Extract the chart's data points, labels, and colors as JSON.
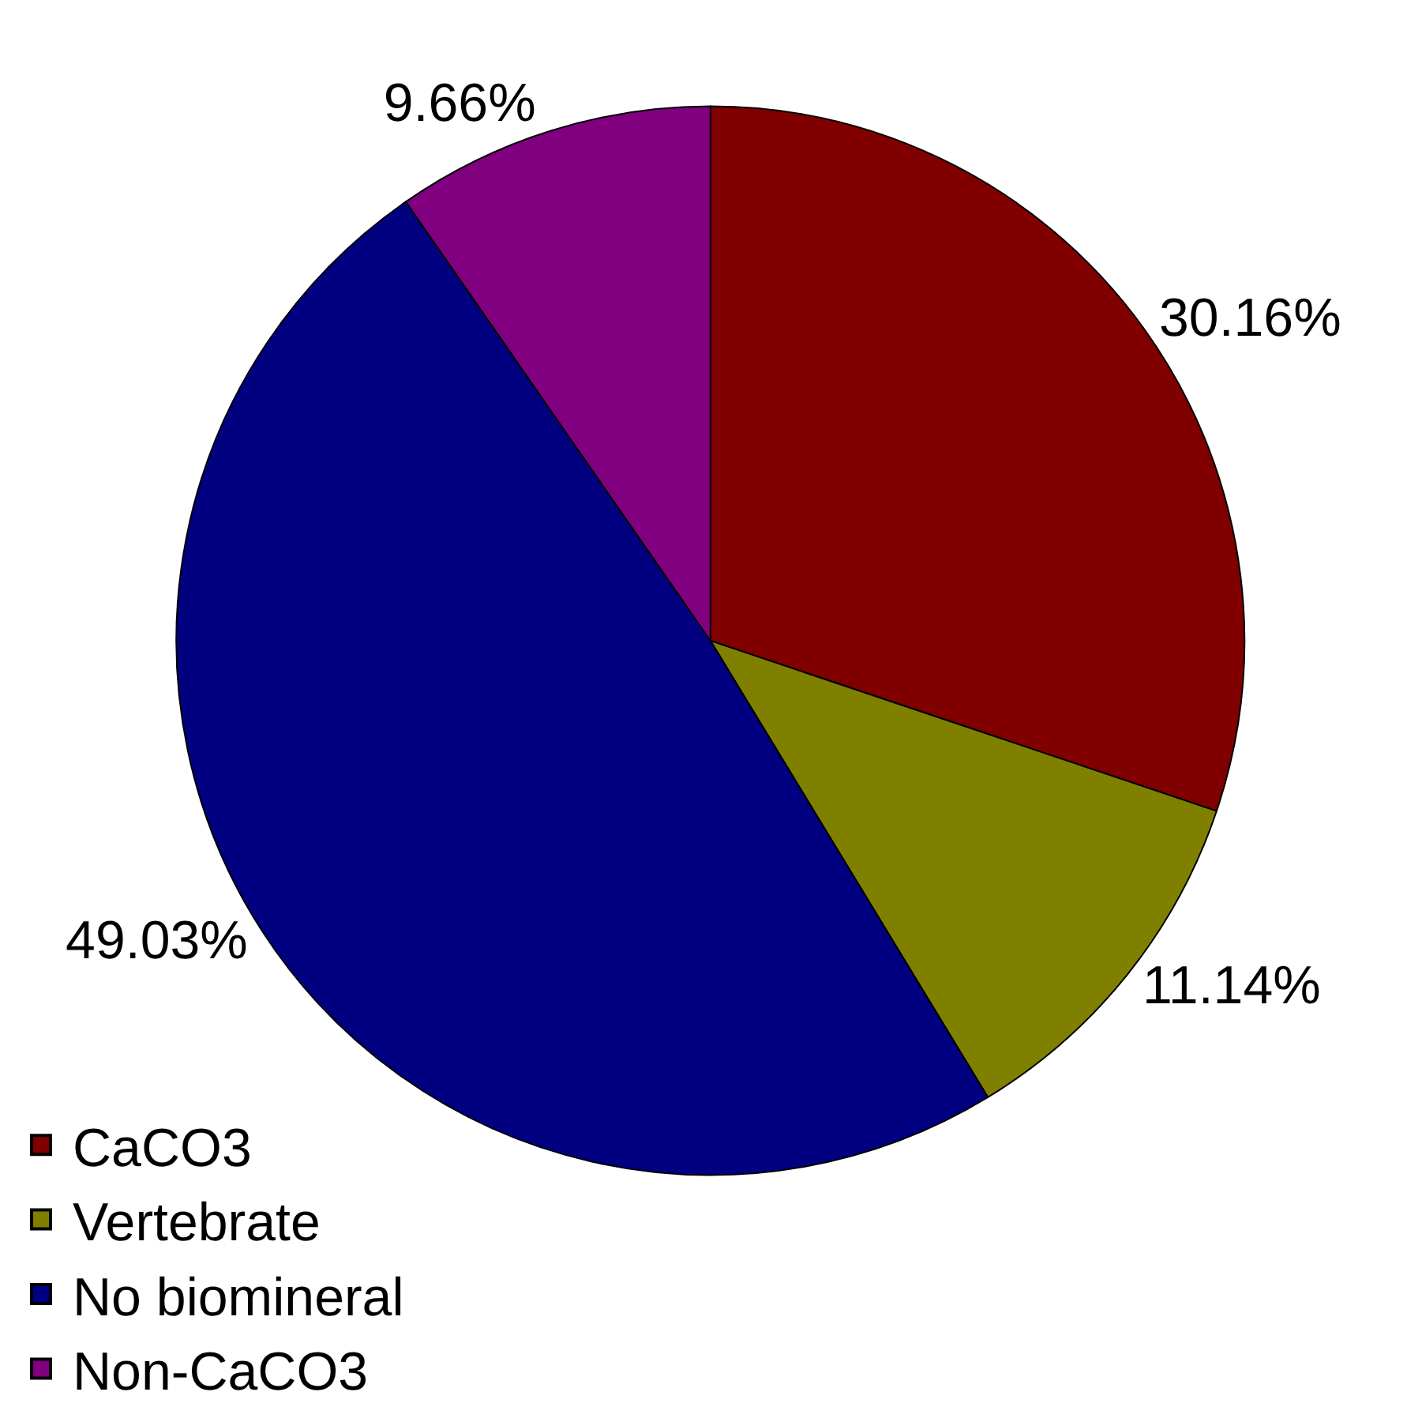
{
  "chart_data": {
    "type": "pie",
    "categories": [
      "CaCO3",
      "Vertebrate",
      "No biomineral",
      "Non-CaCO3"
    ],
    "values": [
      30.16,
      11.14,
      49.03,
      9.66
    ],
    "colors": [
      "#800000",
      "#808000",
      "#000080",
      "#800080"
    ],
    "value_labels": [
      "30.16%",
      "11.14%",
      "49.03%",
      "9.66%"
    ],
    "legend": "bottom left"
  }
}
